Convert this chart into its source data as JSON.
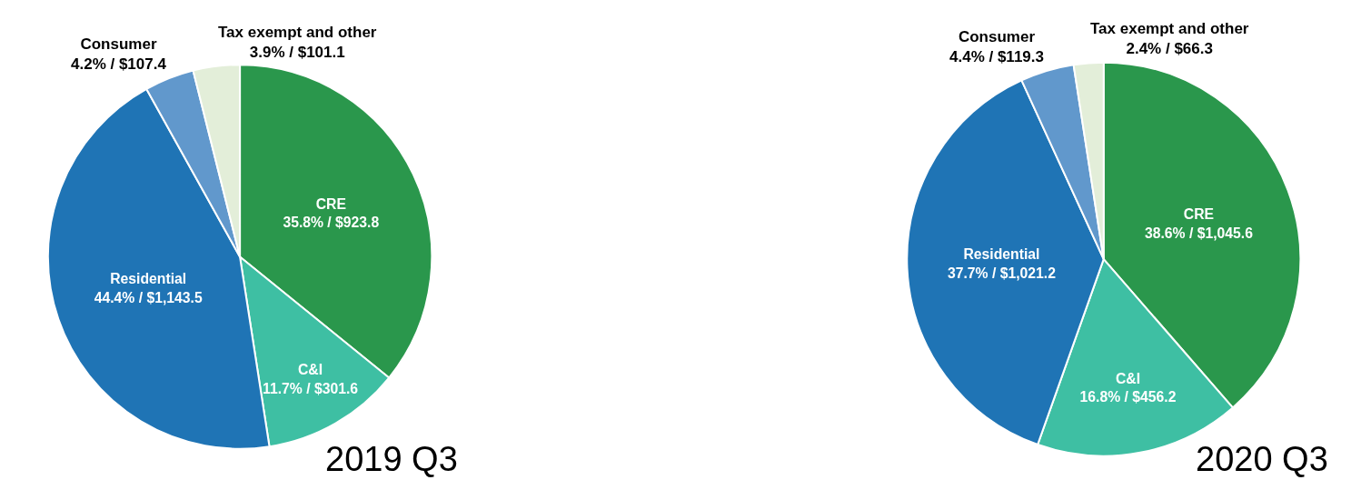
{
  "chart_data": [
    {
      "type": "pie",
      "title": "2019 Q3",
      "categories": [
        "CRE",
        "C&I",
        "Residential",
        "Consumer",
        "Tax exempt and other"
      ],
      "values": [
        923.8,
        301.6,
        1143.5,
        107.4,
        101.1
      ],
      "colors": [
        "#2a974c",
        "#3ebfa3",
        "#1f74b5",
        "#6198cc",
        "#e3eed9"
      ],
      "value_labels": [
        "35.8% / $923.8",
        "11.7% / $301.6",
        "44.4% / $1,143.5",
        "4.2% / $107.4",
        "3.9% / $101.1"
      ]
    },
    {
      "type": "pie",
      "title": "2020 Q3",
      "categories": [
        "CRE",
        "C&I",
        "Residential",
        "Consumer",
        "Tax exempt and other"
      ],
      "values": [
        1045.6,
        456.2,
        1021.2,
        119.3,
        66.3
      ],
      "colors": [
        "#2a974c",
        "#3ebfa3",
        "#1f74b5",
        "#6198cc",
        "#e3eed9"
      ],
      "value_labels": [
        "38.6% / $1,045.6",
        "16.8% / $456.2",
        "37.7% / $1,021.2",
        "4.4% / $119.3",
        "2.4% / $66.3"
      ]
    }
  ]
}
